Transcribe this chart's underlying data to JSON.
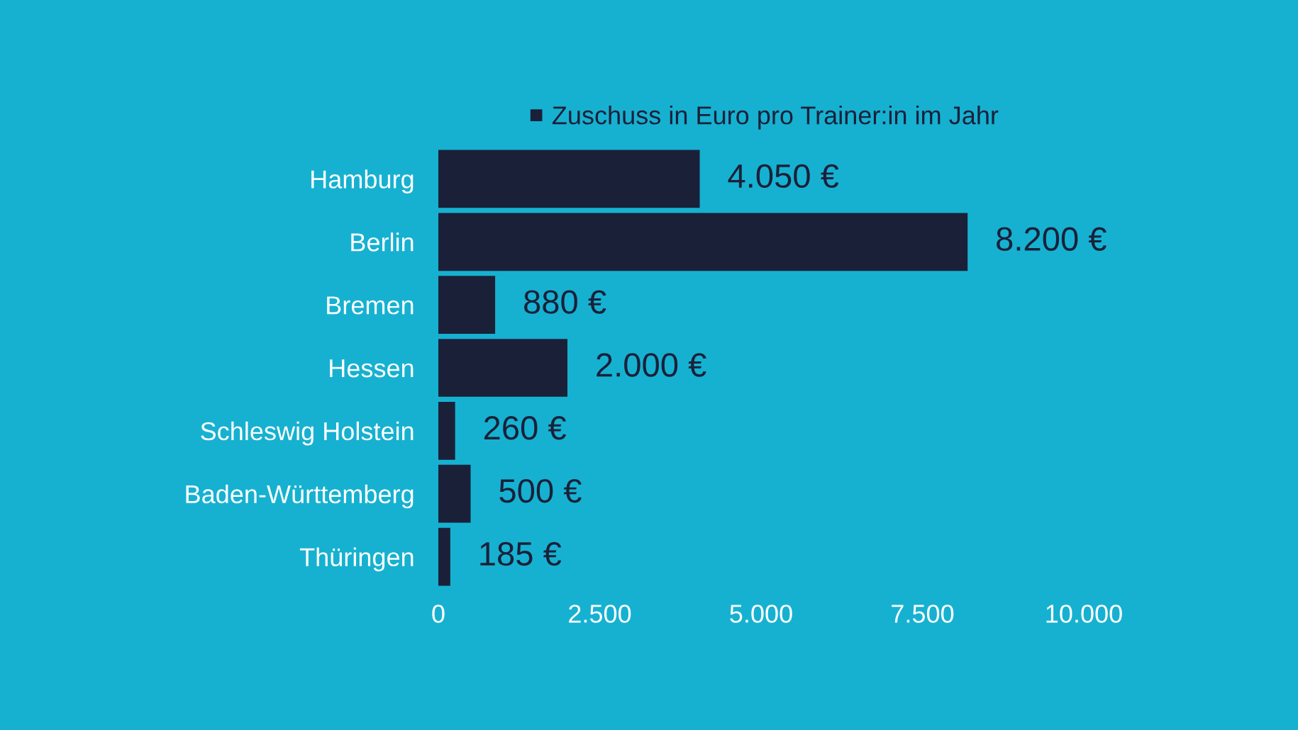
{
  "chart_data": {
    "type": "bar",
    "orientation": "horizontal",
    "categories": [
      "Hamburg",
      "Berlin",
      "Bremen",
      "Hessen",
      "Schleswig Holstein",
      "Baden-Württemberg",
      "Thüringen"
    ],
    "series": [
      {
        "name": "Zuschuss in Euro pro Trainer:in im Jahr",
        "color": "#1b2039",
        "values": [
          4050,
          8200,
          880,
          2000,
          260,
          500,
          185
        ],
        "value_labels": [
          "4.050 €",
          "8.200 €",
          "880 €",
          "2.000 €",
          "260 €",
          "500 €",
          "185 €"
        ]
      }
    ],
    "xlim": [
      0,
      10000
    ],
    "xticks": [
      0,
      {
        "value": 2500,
        "label": "2.500"
      },
      {
        "value": 5000,
        "label": "5.000"
      },
      {
        "value": 7500,
        "label": "7.500"
      },
      {
        "value": 10000,
        "label": "10.000"
      }
    ],
    "legend": "top",
    "grid": false
  }
}
